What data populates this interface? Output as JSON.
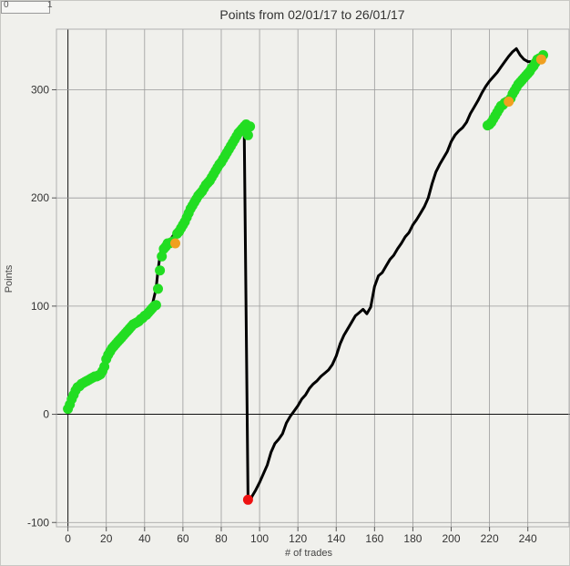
{
  "corner": {
    "left": "0",
    "right": "1"
  },
  "chart_data": {
    "type": "line",
    "title": "Points from 02/01/17 to 26/01/17",
    "xlabel": "# of trades",
    "ylabel": "Points",
    "xlim": [
      -6,
      262
    ],
    "ylim": [
      -104,
      356
    ],
    "xticks": [
      0,
      20,
      40,
      60,
      80,
      100,
      120,
      140,
      160,
      180,
      200,
      220,
      240
    ],
    "yticks": [
      -100,
      0,
      100,
      200,
      300
    ],
    "grid": true,
    "colors": {
      "line": "#000000",
      "green": "#22dd22",
      "orange": "#f0a020",
      "red": "#ee1111",
      "grid": "#9a9a9a",
      "zero": "#111111"
    },
    "series": [
      {
        "style": "line",
        "color": "#000000",
        "x": [
          0,
          2,
          4,
          6,
          8,
          10,
          12,
          14,
          16,
          18,
          19,
          20,
          22,
          24,
          26,
          28,
          30,
          32,
          34,
          36,
          38,
          40,
          42,
          44,
          46,
          47,
          48,
          49,
          50,
          52,
          54,
          56,
          58,
          60,
          62,
          64,
          66,
          68,
          70,
          72,
          74,
          76,
          78,
          80,
          82,
          84,
          86,
          88,
          90,
          92,
          94,
          95,
          95.5,
          96,
          98,
          100,
          102,
          104,
          106,
          108,
          110,
          112,
          114,
          116,
          118,
          120,
          122,
          124,
          126,
          128,
          130,
          132,
          134,
          136,
          138,
          140,
          142,
          144,
          146,
          148,
          150,
          152,
          154,
          156,
          158,
          160,
          162,
          164,
          166,
          168,
          170,
          172,
          174,
          176,
          178,
          180,
          182,
          184,
          186,
          188,
          190,
          192,
          194,
          196,
          198,
          200,
          202,
          204,
          206,
          208,
          210,
          212,
          214,
          216,
          218,
          220,
          222,
          224,
          226,
          228,
          230,
          232,
          234,
          236,
          238,
          240,
          242,
          244,
          246,
          248
        ],
        "y": [
          3,
          12,
          20,
          26,
          28,
          31,
          33,
          34,
          36,
          39,
          44,
          51,
          58,
          63,
          67,
          72,
          77,
          81,
          85,
          87,
          90,
          93,
          97,
          101,
          116,
          133,
          146,
          154,
          158,
          158,
          163,
          168,
          173,
          180,
          186,
          192,
          198,
          203,
          207,
          212,
          218,
          225,
          230,
          236,
          241,
          246,
          251,
          254,
          257,
          263,
          -79,
          -79,
          -79,
          -76,
          -70,
          -63,
          -55,
          -47,
          -35,
          -27,
          -23,
          -18,
          -8,
          -2,
          3,
          8,
          14,
          18,
          24,
          28,
          31,
          35,
          38,
          41,
          46,
          54,
          65,
          73,
          79,
          85,
          91,
          94,
          97,
          93,
          99,
          118,
          128,
          131,
          137,
          143,
          147,
          153,
          158,
          164,
          168,
          175,
          180,
          186,
          192,
          200,
          213,
          224,
          231,
          237,
          243,
          252,
          258,
          262,
          265,
          270,
          278,
          284,
          290,
          297,
          303,
          308,
          312,
          316,
          321,
          326,
          331,
          335,
          338,
          332,
          328,
          326,
          326,
          328,
          330,
          332
        ]
      },
      {
        "style": "dots",
        "color": "#22dd22",
        "x": [
          0,
          1,
          2,
          3,
          4,
          5,
          6,
          7,
          8,
          9,
          10,
          11,
          12,
          13,
          14,
          15,
          16,
          17,
          18,
          19,
          20,
          21,
          22,
          23,
          24,
          25,
          26,
          27,
          28,
          29,
          30,
          31,
          32,
          33,
          34,
          35,
          36,
          37,
          38,
          39,
          40,
          41,
          42,
          43,
          44,
          45,
          46,
          47,
          48,
          49,
          50,
          51,
          52,
          53,
          54,
          55,
          57,
          58,
          59,
          60,
          61,
          62,
          63,
          64,
          65,
          66,
          67,
          68,
          69,
          70,
          71,
          72,
          73,
          74,
          75,
          76,
          77,
          78,
          79,
          80,
          81,
          82,
          83,
          84,
          85,
          86,
          87,
          88,
          89,
          90,
          91,
          92,
          93,
          94,
          95,
          219,
          220,
          221,
          222,
          223,
          224,
          225,
          226,
          227,
          228,
          229,
          231,
          232,
          233,
          234,
          235,
          236,
          237,
          238,
          239,
          240,
          241,
          242,
          243,
          244,
          245,
          246,
          248
        ],
        "y": [
          5,
          9,
          14,
          18,
          22,
          25,
          26,
          28,
          29,
          30,
          31,
          32,
          33,
          34,
          35,
          35,
          36,
          37,
          40,
          44,
          51,
          55,
          58,
          61,
          63,
          65,
          67,
          69,
          71,
          73,
          75,
          77,
          79,
          81,
          83,
          84,
          85,
          86,
          88,
          89,
          91,
          92,
          94,
          96,
          98,
          100,
          101,
          116,
          133,
          146,
          153,
          155,
          158,
          158,
          159,
          160,
          167,
          169,
          172,
          175,
          178,
          182,
          186,
          190,
          193,
          196,
          199,
          202,
          204,
          206,
          209,
          212,
          214,
          216,
          219,
          222,
          225,
          228,
          231,
          233,
          236,
          239,
          242,
          245,
          248,
          251,
          254,
          257,
          260,
          262,
          264,
          266,
          268,
          258,
          266,
          267,
          268,
          270,
          273,
          276,
          279,
          282,
          285,
          286,
          288,
          289,
          292,
          296,
          299,
          302,
          305,
          307,
          309,
          311,
          313,
          315,
          317,
          320,
          322,
          325,
          328,
          329,
          332
        ]
      },
      {
        "style": "dots",
        "color": "#f0a020",
        "x": [
          56,
          230,
          247
        ],
        "y": [
          158,
          289,
          328
        ]
      },
      {
        "style": "dots",
        "color": "#ee1111",
        "x": [
          94
        ],
        "y": [
          -79
        ]
      }
    ]
  }
}
